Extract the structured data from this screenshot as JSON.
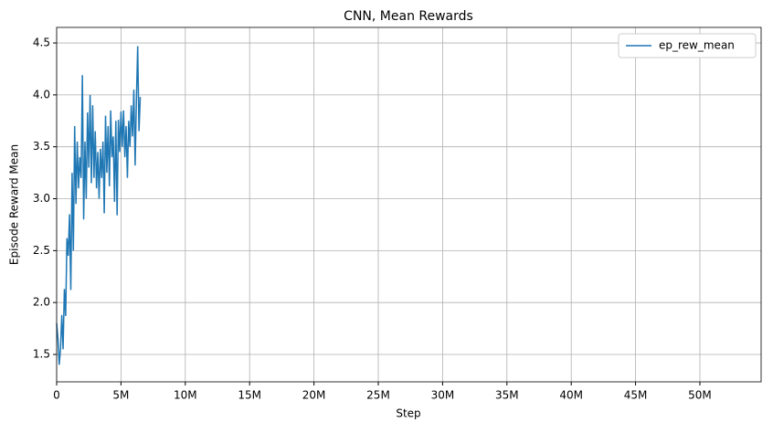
{
  "chart_data": {
    "type": "line",
    "title": "CNN, Mean Rewards",
    "xlabel": "Step",
    "ylabel": "Episode Reward Mean",
    "x": [
      0,
      100000,
      200000,
      300000,
      400000,
      500000,
      600000,
      700000,
      800000,
      900000,
      1000000,
      1100000,
      1200000,
      1300000,
      1400000,
      1500000,
      1600000,
      1700000,
      1800000,
      1900000,
      2000000,
      2100000,
      2200000,
      2300000,
      2400000,
      2500000,
      2600000,
      2700000,
      2800000,
      2900000,
      3000000,
      3100000,
      3200000,
      3300000,
      3400000,
      3500000,
      3600000,
      3700000,
      3800000,
      3900000,
      4000000,
      4100000,
      4200000,
      4300000,
      4400000,
      4500000,
      4600000,
      4700000,
      4800000,
      4900000,
      5000000,
      5100000,
      5200000,
      5300000,
      5400000,
      5500000,
      5600000,
      5700000,
      5800000,
      5900000,
      6000000,
      6100000,
      6200000,
      6300000,
      6400000,
      6500000
    ],
    "series": [
      {
        "name": "ep_rew_mean",
        "color": "#1f77b4",
        "values": [
          1.8,
          1.65,
          1.4,
          1.55,
          1.88,
          1.55,
          2.13,
          1.87,
          2.62,
          2.45,
          2.85,
          2.12,
          3.25,
          2.5,
          3.7,
          2.95,
          3.55,
          3.1,
          3.4,
          3.2,
          4.19,
          2.8,
          3.55,
          3.0,
          3.83,
          3.3,
          4.0,
          3.15,
          3.9,
          3.2,
          3.65,
          3.1,
          3.45,
          3.0,
          3.48,
          3.2,
          3.55,
          2.86,
          3.8,
          3.25,
          3.7,
          3.12,
          3.85,
          3.4,
          3.6,
          2.97,
          3.75,
          2.84,
          3.76,
          3.45,
          3.84,
          3.5,
          3.85,
          3.4,
          3.7,
          3.2,
          3.75,
          3.5,
          3.9,
          3.6,
          4.05,
          3.32,
          3.95,
          4.47,
          3.65,
          3.98
        ]
      }
    ],
    "xlim": [
      0,
      54760000
    ],
    "ylim": [
      1.236,
      4.65
    ],
    "xticks": [
      0,
      {
        "value": 5000000,
        "label": "5M"
      },
      {
        "value": 10000000,
        "label": "10M"
      },
      {
        "value": 15000000,
        "label": "15M"
      },
      {
        "value": 20000000,
        "label": "20M"
      },
      {
        "value": 25000000,
        "label": "25M"
      },
      {
        "value": 30000000,
        "label": "30M"
      },
      {
        "value": 35000000,
        "label": "35M"
      },
      {
        "value": 40000000,
        "label": "40M"
      },
      {
        "value": 45000000,
        "label": "45M"
      },
      {
        "value": 50000000,
        "label": "50M"
      }
    ],
    "yticks": [
      1.5,
      {
        "value": 2,
        "label": "2.0"
      },
      2.5,
      {
        "value": 3,
        "label": "3.0"
      },
      3.5,
      {
        "value": 4,
        "label": "4.0"
      },
      4.5
    ],
    "grid": true,
    "legend": "upper right"
  }
}
